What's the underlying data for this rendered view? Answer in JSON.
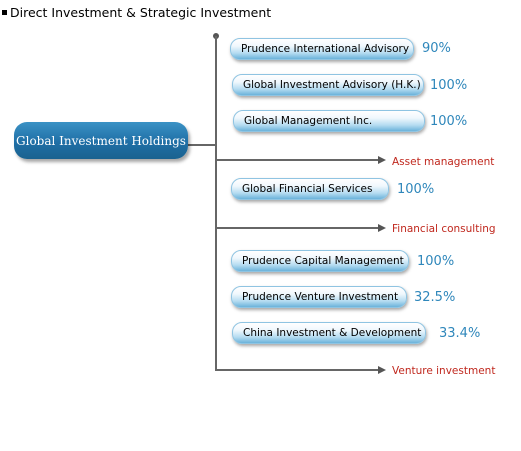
{
  "header": {
    "title": "Direct Investment & Strategic Investment"
  },
  "root": {
    "label": "Global Investment Holdings"
  },
  "entities": [
    {
      "name": "Prudence International Advisory",
      "percent": "90%"
    },
    {
      "name": "Global Investment Advisory (H.K.)",
      "percent": "100%"
    },
    {
      "name": "Global Management Inc.",
      "percent": "100%"
    },
    {
      "name": "Global Financial Services",
      "percent": "100%"
    },
    {
      "name": "Prudence Capital Management",
      "percent": "100%"
    },
    {
      "name": "Prudence Venture Investment",
      "percent": "32.5%"
    },
    {
      "name": "China Investment & Development",
      "percent": "33.4%"
    }
  ],
  "categories": [
    {
      "label": "Asset management"
    },
    {
      "label": "Financial consulting"
    },
    {
      "label": "Venture investment"
    }
  ],
  "colors": {
    "root_node": "#1f6fa6",
    "percent_text": "#2f87bb",
    "category_text": "#c0281e"
  }
}
